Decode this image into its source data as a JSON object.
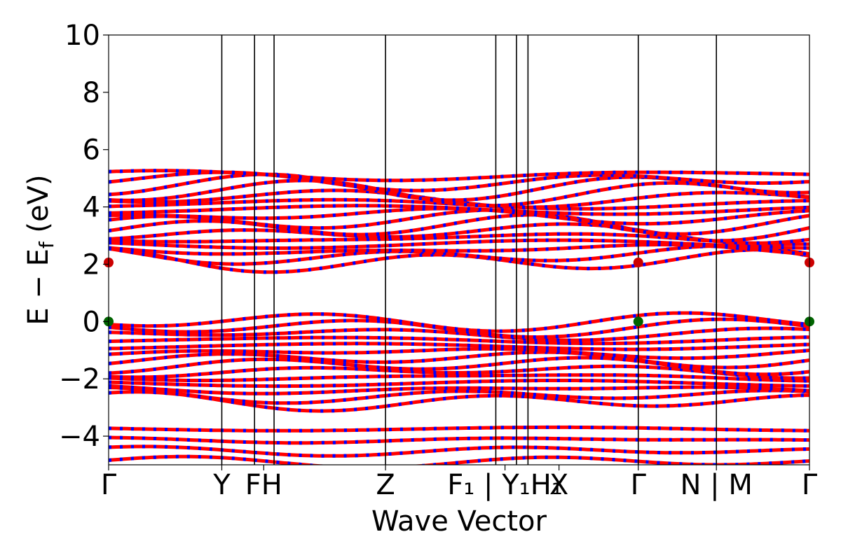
{
  "chart_data": {
    "type": "line",
    "title": "",
    "xlabel": "Wave Vector",
    "ylabel": "E − E_f (eV)",
    "ylabel_main": "E − E",
    "ylabel_sub": "f",
    "ylabel_tail": " (eV)",
    "ylim": [
      -5,
      10
    ],
    "yticks": [
      "10",
      "8",
      "6",
      "4",
      "2",
      "0",
      "−2",
      "−4"
    ],
    "ytick_values": [
      10,
      8,
      6,
      4,
      2,
      0,
      -2,
      -4
    ],
    "kpath_length": 6.1,
    "high_symmetry_points": [
      {
        "label": "Γ",
        "k": 0.0
      },
      {
        "label": "Y",
        "k": 0.985
      },
      {
        "label": "F",
        "k": 1.27
      },
      {
        "label": "H",
        "k": 1.44
      },
      {
        "label": "Z",
        "k": 2.41
      },
      {
        "label": "F₁ | Y₁",
        "k": 3.37
      },
      {
        "label": "H₁",
        "k": 3.55
      },
      {
        "label": "X",
        "k": 3.65
      },
      {
        "label": "Γ",
        "k": 4.61
      },
      {
        "label": "N | M",
        "k": 5.29
      },
      {
        "label": "Γ",
        "k": 6.1
      }
    ],
    "tick_labels": [
      "Γ",
      "Y",
      "FH",
      "Z",
      "F₁ | Y₁H₁",
      "X",
      "Γ",
      "N | M",
      "Γ"
    ],
    "valence_band_max": 0.0,
    "conduction_band_min": 2.06,
    "band_gap_eV": 2.06,
    "band_groups": [
      {
        "name": "lower valence",
        "range": [
          -5.0,
          -3.7
        ]
      },
      {
        "name": "valence",
        "range": [
          -2.9,
          0.0
        ]
      },
      {
        "name": "conduction",
        "range": [
          2.06,
          5.3
        ]
      }
    ],
    "colors": {
      "spin_up": "#ff0000",
      "spin_down": "#0000ff",
      "vbm_marker": "#006400",
      "cbm_marker": "#cc0000",
      "axis": "#000000"
    },
    "extrema_markers": [
      {
        "type": "VBM",
        "k": 0.0,
        "E": 0.0
      },
      {
        "type": "VBM",
        "k": 4.61,
        "E": 0.0
      },
      {
        "type": "VBM",
        "k": 6.1,
        "E": 0.0
      },
      {
        "type": "CBM",
        "k": 0.0,
        "E": 2.06
      },
      {
        "type": "CBM",
        "k": 4.61,
        "E": 2.06
      },
      {
        "type": "CBM",
        "k": 6.1,
        "E": 2.06
      }
    ],
    "grid": false,
    "legend": "none"
  }
}
